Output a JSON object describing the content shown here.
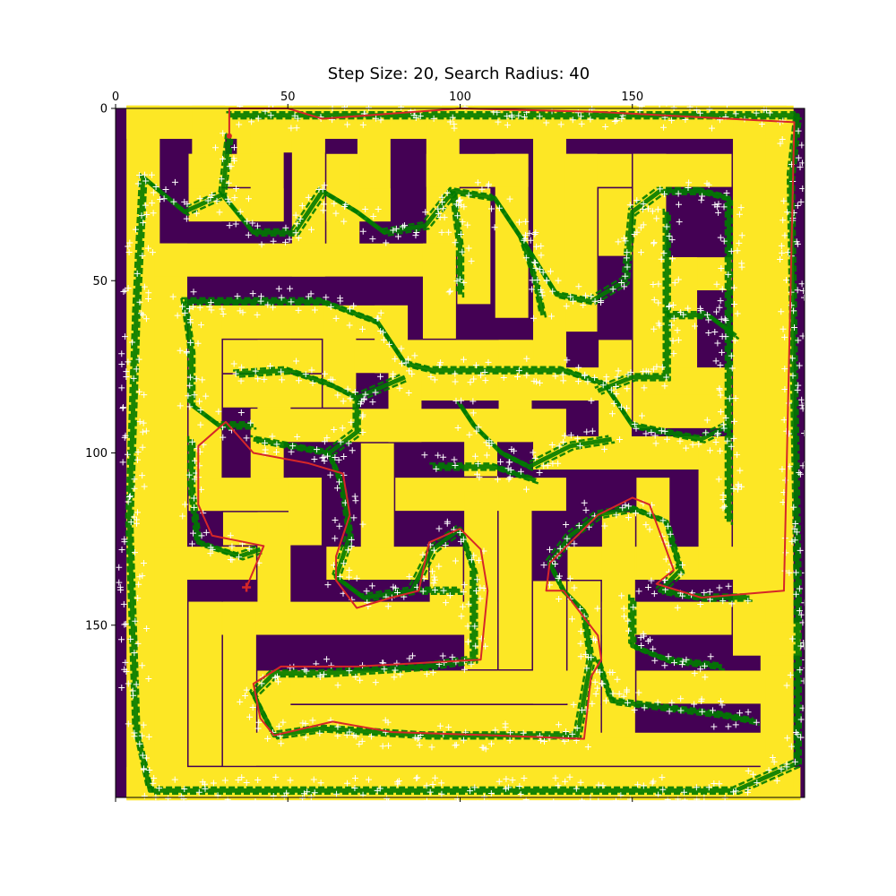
{
  "chart_data": {
    "type": "heatmap",
    "title": "Step Size: 20, Search Radius: 40",
    "xlabel": "",
    "ylabel": "",
    "x_ticks": [
      0,
      50,
      100,
      150
    ],
    "y_ticks": [
      0,
      50,
      100,
      150
    ],
    "xlim": [
      0,
      200
    ],
    "ylim": [
      200,
      0
    ],
    "colors": {
      "wall": "#fde725",
      "free": "#440154",
      "tree": "#007a00",
      "tree_samples": "#ffffff",
      "path": "#d62728"
    },
    "maze_walls": [
      [
        8,
        4,
        184,
        4
      ],
      [
        8,
        4,
        8,
        196
      ],
      [
        8,
        196,
        194,
        196
      ],
      [
        192,
        4,
        192,
        196
      ],
      [
        8,
        4,
        27,
        4
      ],
      [
        8,
        4,
        8,
        196
      ],
      [
        27,
        4,
        27,
        12
      ],
      [
        40,
        4,
        190,
        4
      ],
      [
        40,
        4,
        40,
        18
      ],
      [
        26,
        18,
        40,
        18
      ],
      [
        26,
        18,
        26,
        28
      ],
      [
        26,
        28,
        44,
        28
      ],
      [
        44,
        8,
        44,
        28
      ],
      [
        44,
        8,
        56,
        8
      ],
      [
        56,
        8,
        56,
        44
      ],
      [
        16,
        44,
        56,
        44
      ],
      [
        75,
        8,
        75,
        28
      ],
      [
        66,
        28,
        75,
        28
      ],
      [
        66,
        18,
        66,
        38
      ],
      [
        95,
        8,
        95,
        38
      ],
      [
        104,
        28,
        104,
        52
      ],
      [
        115,
        18,
        115,
        56
      ],
      [
        95,
        18,
        115,
        18
      ],
      [
        126,
        8,
        126,
        52
      ],
      [
        135,
        18,
        145,
        18
      ],
      [
        135,
        18,
        135,
        60
      ],
      [
        145,
        28,
        145,
        38
      ],
      [
        155,
        18,
        155,
        88
      ],
      [
        155,
        18,
        174,
        18
      ],
      [
        164,
        48,
        174,
        48
      ],
      [
        164,
        48,
        164,
        80
      ],
      [
        164,
        80,
        174,
        80
      ],
      [
        184,
        8,
        184,
        154
      ],
      [
        16,
        44,
        16,
        196
      ],
      [
        16,
        44,
        94,
        44
      ],
      [
        94,
        44,
        94,
        62
      ],
      [
        26,
        62,
        80,
        62
      ],
      [
        26,
        62,
        26,
        112
      ],
      [
        36,
        72,
        55,
        72
      ],
      [
        46,
        72,
        46,
        88
      ],
      [
        36,
        82,
        55,
        82
      ],
      [
        65,
        62,
        65,
        82
      ],
      [
        80,
        62,
        80,
        72
      ],
      [
        74,
        72,
        126,
        72
      ],
      [
        84,
        80,
        136,
        80
      ],
      [
        84,
        80,
        84,
        92
      ],
      [
        126,
        56,
        126,
        72
      ],
      [
        116,
        72,
        116,
        92
      ],
      [
        145,
        72,
        145,
        92
      ],
      [
        44,
        92,
        126,
        92
      ],
      [
        44,
        92,
        44,
        108
      ],
      [
        106,
        92,
        106,
        102
      ],
      [
        126,
        100,
        174,
        100
      ],
      [
        174,
        100,
        174,
        130
      ],
      [
        155,
        88,
        174,
        88
      ],
      [
        76,
        102,
        76,
        132
      ],
      [
        66,
        132,
        86,
        132
      ],
      [
        86,
        112,
        126,
        112
      ],
      [
        26,
        112,
        55,
        112
      ],
      [
        36,
        122,
        46,
        122
      ],
      [
        46,
        122,
        46,
        148
      ],
      [
        55,
        112,
        55,
        122
      ],
      [
        16,
        132,
        36,
        132
      ],
      [
        26,
        148,
        46,
        148
      ],
      [
        26,
        148,
        26,
        186
      ],
      [
        36,
        148,
        106,
        148
      ],
      [
        36,
        148,
        36,
        186
      ],
      [
        96,
        132,
        96,
        148
      ],
      [
        106,
        116,
        106,
        158
      ],
      [
        116,
        116,
        116,
        158
      ],
      [
        126,
        142,
        126,
        168
      ],
      [
        136,
        142,
        136,
        178
      ],
      [
        46,
        168,
        136,
        168
      ],
      [
        46,
        168,
        46,
        178
      ],
      [
        46,
        178,
        136,
        178
      ],
      [
        36,
        186,
        184,
        186
      ],
      [
        136,
        132,
        174,
        132
      ],
      [
        146,
        122,
        146,
        178
      ],
      [
        156,
        112,
        156,
        132
      ],
      [
        146,
        148,
        174,
        148
      ],
      [
        156,
        168,
        184,
        168
      ],
      [
        174,
        132,
        184,
        132
      ],
      [
        184,
        154,
        194,
        154
      ]
    ],
    "search_tree": [
      [
        [
          33,
          8
        ],
        [
          31,
          25
        ],
        [
          20,
          30
        ],
        [
          8,
          20
        ],
        [
          6,
          60
        ],
        [
          4,
          120
        ],
        [
          6,
          180
        ],
        [
          10,
          198
        ],
        [
          60,
          198
        ],
        [
          120,
          198
        ],
        [
          180,
          198
        ],
        [
          198,
          190
        ],
        [
          198,
          140
        ],
        [
          197,
          80
        ],
        [
          196,
          20
        ],
        [
          198,
          2
        ],
        [
          150,
          2
        ],
        [
          100,
          2
        ],
        [
          50,
          2
        ],
        [
          33,
          2
        ]
      ],
      [
        [
          31,
          25
        ],
        [
          40,
          36
        ],
        [
          52,
          36
        ],
        [
          60,
          24
        ],
        [
          70,
          30
        ],
        [
          78,
          36
        ],
        [
          90,
          34
        ],
        [
          98,
          24
        ],
        [
          110,
          26
        ],
        [
          118,
          38
        ],
        [
          128,
          54
        ],
        [
          138,
          56
        ],
        [
          148,
          50
        ],
        [
          150,
          30
        ],
        [
          158,
          24
        ],
        [
          170,
          24
        ]
      ],
      [
        [
          98,
          24
        ],
        [
          100,
          40
        ],
        [
          100,
          54
        ]
      ],
      [
        [
          118,
          38
        ],
        [
          122,
          50
        ],
        [
          124,
          60
        ]
      ],
      [
        [
          160,
          30
        ],
        [
          160,
          60
        ],
        [
          160,
          78
        ],
        [
          150,
          78
        ],
        [
          140,
          82
        ]
      ],
      [
        [
          170,
          24
        ],
        [
          178,
          26
        ],
        [
          178,
          60
        ],
        [
          178,
          100
        ],
        [
          178,
          120
        ]
      ],
      [
        [
          160,
          60
        ],
        [
          172,
          60
        ],
        [
          180,
          66
        ]
      ],
      [
        [
          20,
          56
        ],
        [
          40,
          56
        ],
        [
          60,
          56
        ],
        [
          76,
          62
        ],
        [
          84,
          74
        ],
        [
          92,
          76
        ],
        [
          110,
          76
        ],
        [
          130,
          76
        ],
        [
          142,
          80
        ],
        [
          150,
          92
        ],
        [
          170,
          96
        ],
        [
          178,
          92
        ]
      ],
      [
        [
          20,
          56
        ],
        [
          22,
          70
        ],
        [
          22,
          86
        ],
        [
          30,
          92
        ],
        [
          40,
          92
        ]
      ],
      [
        [
          35,
          77
        ],
        [
          50,
          76
        ],
        [
          62,
          80
        ],
        [
          70,
          84
        ],
        [
          84,
          78
        ]
      ],
      [
        [
          70,
          84
        ],
        [
          70,
          94
        ],
        [
          62,
          100
        ],
        [
          40,
          96
        ]
      ],
      [
        [
          100,
          86
        ],
        [
          104,
          92
        ],
        [
          112,
          100
        ],
        [
          120,
          104
        ],
        [
          132,
          98
        ],
        [
          144,
          96
        ]
      ],
      [
        [
          92,
          104
        ],
        [
          110,
          104
        ],
        [
          122,
          108
        ]
      ],
      [
        [
          62,
          100
        ],
        [
          66,
          110
        ],
        [
          68,
          124
        ],
        [
          64,
          136
        ],
        [
          72,
          142
        ],
        [
          86,
          140
        ],
        [
          92,
          128
        ],
        [
          100,
          122
        ],
        [
          104,
          134
        ],
        [
          104,
          160
        ],
        [
          90,
          162
        ],
        [
          60,
          164
        ],
        [
          46,
          164
        ],
        [
          40,
          170
        ],
        [
          46,
          182
        ],
        [
          60,
          180
        ],
        [
          90,
          182
        ],
        [
          120,
          182
        ],
        [
          134,
          182
        ],
        [
          138,
          160
        ],
        [
          136,
          146
        ],
        [
          130,
          140
        ],
        [
          126,
          132
        ],
        [
          132,
          124
        ],
        [
          140,
          118
        ],
        [
          150,
          116
        ],
        [
          160,
          120
        ],
        [
          164,
          134
        ],
        [
          158,
          140
        ],
        [
          170,
          142
        ],
        [
          184,
          142
        ]
      ],
      [
        [
          22,
          96
        ],
        [
          22,
          110
        ],
        [
          24,
          126
        ],
        [
          36,
          130
        ],
        [
          42,
          128
        ]
      ],
      [
        [
          88,
          140
        ],
        [
          100,
          140
        ]
      ],
      [
        [
          140,
          160
        ],
        [
          144,
          172
        ],
        [
          160,
          174
        ],
        [
          176,
          176
        ],
        [
          186,
          178
        ]
      ],
      [
        [
          150,
          142
        ],
        [
          150,
          156
        ],
        [
          160,
          160
        ],
        [
          176,
          162
        ]
      ]
    ],
    "path": [
      [
        33,
        8
      ],
      [
        33,
        0
      ],
      [
        50,
        0
      ],
      [
        60,
        3
      ],
      [
        100,
        0
      ],
      [
        140,
        1
      ],
      [
        197,
        4
      ],
      [
        194,
        140
      ],
      [
        170,
        142
      ],
      [
        157,
        138
      ],
      [
        162,
        134
      ],
      [
        155,
        115
      ],
      [
        150,
        113
      ],
      [
        140,
        118
      ],
      [
        130,
        128
      ],
      [
        126,
        132
      ],
      [
        125,
        140
      ],
      [
        130,
        140
      ],
      [
        140,
        153
      ],
      [
        141,
        160
      ],
      [
        138,
        165
      ],
      [
        136,
        183
      ],
      [
        110,
        182
      ],
      [
        80,
        181
      ],
      [
        63,
        178
      ],
      [
        46,
        182
      ],
      [
        42,
        177
      ],
      [
        40,
        167
      ],
      [
        48,
        162
      ],
      [
        70,
        162
      ],
      [
        106,
        160
      ],
      [
        108,
        140
      ],
      [
        106,
        128
      ],
      [
        100,
        122
      ],
      [
        91,
        126
      ],
      [
        88,
        140
      ],
      [
        80,
        142
      ],
      [
        70,
        145
      ],
      [
        64,
        137
      ],
      [
        64,
        130
      ],
      [
        68,
        118
      ],
      [
        66,
        106
      ],
      [
        56,
        103
      ],
      [
        40,
        100
      ],
      [
        32,
        91
      ],
      [
        24,
        98
      ],
      [
        24,
        115
      ],
      [
        28,
        124
      ],
      [
        43,
        127
      ],
      [
        38,
        139
      ]
    ],
    "start": [
      38,
      139
    ],
    "goal": [
      33,
      8
    ]
  }
}
